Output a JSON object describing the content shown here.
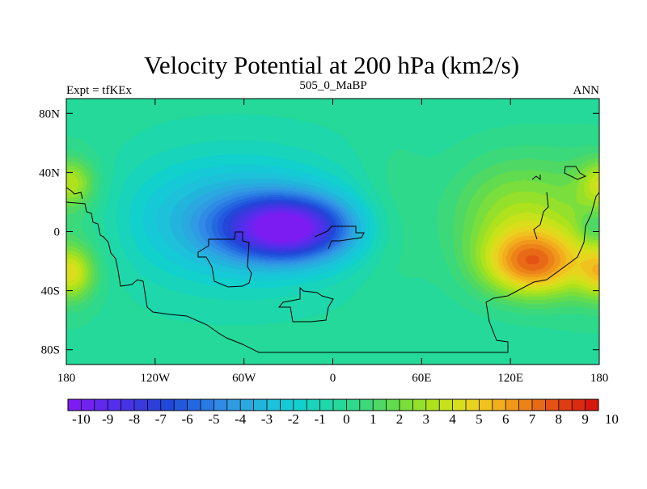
{
  "chart_data": {
    "type": "heatmap",
    "title": "Velocity Potential at 200 hPa (km2/s)",
    "left_string": "Expt = tfKEx",
    "center_string": "505_0_MaBP",
    "right_string": "ANN",
    "x_tick_labels": [
      "180",
      "120W",
      "60W",
      "0",
      "60E",
      "120E",
      "180"
    ],
    "x_tick_values": [
      -180,
      -120,
      -60,
      0,
      60,
      120,
      180
    ],
    "y_tick_labels": [
      "80N",
      "40N",
      "0",
      "40S",
      "80S"
    ],
    "y_tick_values": [
      80,
      40,
      0,
      -40,
      -80
    ],
    "xlim": [
      -180,
      180
    ],
    "ylim": [
      -90,
      90
    ],
    "colorbar": {
      "labels": [
        "-10",
        "-9",
        "-8",
        "-7",
        "-6",
        "-5",
        "-4",
        "-3",
        "-2",
        "-1",
        "0",
        "1",
        "2",
        "3",
        "4",
        "5",
        "6",
        "7",
        "8",
        "9",
        "10"
      ],
      "levels": [
        -10,
        -9.5,
        -9,
        -8.5,
        -8,
        -7.5,
        -7,
        -6.5,
        -6,
        -5.5,
        -5,
        -4.5,
        -4,
        -3.5,
        -3,
        -2.5,
        -2,
        -1.5,
        -1,
        -0.5,
        0,
        0.5,
        1,
        1.5,
        2,
        2.5,
        3,
        3.5,
        4,
        4.5,
        5,
        5.5,
        6,
        6.5,
        7,
        7.5,
        8,
        8.5,
        9,
        9.5,
        10
      ],
      "colors": [
        "#7d1cf2",
        "#7022f0",
        "#6228ee",
        "#552eeb",
        "#4733e6",
        "#3a39e0",
        "#2c40d9",
        "#2148da",
        "#2258dd",
        "#2468e0",
        "#2a7ae3",
        "#2f8be5",
        "#2f9be3",
        "#2aa9e0",
        "#22b5dc",
        "#1dc1da",
        "#15c9d6",
        "#12d0cc",
        "#18d4bb",
        "#1ed7aa",
        "#24d99a",
        "#2ed98b",
        "#3bd97a",
        "#4fd964",
        "#62dc4e",
        "#7ade3c",
        "#94e02a",
        "#aee21d",
        "#c6e21a",
        "#d9de1c",
        "#e8d41e",
        "#f0c21e",
        "#f2ae1c",
        "#f0981a",
        "#ec8218",
        "#e86a16",
        "#e45214",
        "#e03c12",
        "#dc2a10",
        "#d6180e"
      ]
    },
    "anomaly_centers": [
      {
        "lon": -30,
        "lat": 2,
        "value": -9.6
      },
      {
        "lon": 135,
        "lat": -22,
        "value": 9.3
      },
      {
        "lon": -177,
        "lat": 33,
        "value": 3.2
      },
      {
        "lon": -177,
        "lat": -28,
        "value": 4.3
      }
    ]
  }
}
